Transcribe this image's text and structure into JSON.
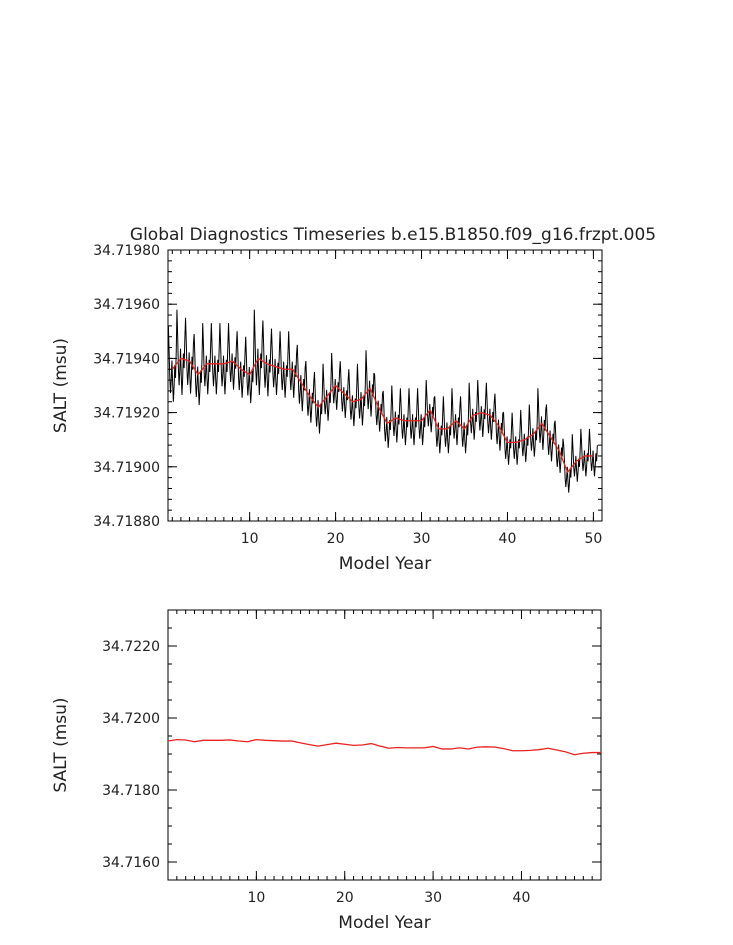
{
  "chart_data": [
    {
      "type": "line",
      "title": "Global Diagnostics Timeseries b.e15.B1850.f09_g16.frzpt.005",
      "xlabel": "Model Year",
      "ylabel": "SALT (msu)",
      "xlim": [
        0.5,
        51
      ],
      "ylim": [
        34.7188,
        34.7198
      ],
      "xticks": [
        10,
        20,
        30,
        40,
        50
      ],
      "yticks": [
        34.7188,
        34.719,
        34.7192,
        34.7194,
        34.7196,
        34.7198
      ],
      "ytick_labels": [
        "34.71880",
        "34.71900",
        "34.71920",
        "34.71940",
        "34.71960",
        "34.71980"
      ],
      "series": [
        {
          "style": "monthly",
          "color": "#000000",
          "annual_means": [
            34.71936,
            34.7194,
            34.71939,
            34.71934,
            34.71938,
            34.71938,
            34.71938,
            34.71939,
            34.71936,
            34.71934,
            34.7194,
            34.71938,
            34.71937,
            34.71936,
            34.71936,
            34.71931,
            34.71926,
            34.71922,
            34.71926,
            34.7193,
            34.71927,
            34.71924,
            34.71925,
            34.71929,
            34.71922,
            34.71916,
            34.71918,
            34.71917,
            34.71917,
            34.71917,
            34.71921,
            34.71914,
            34.71914,
            34.71917,
            34.71914,
            34.71919,
            34.7192,
            34.71919,
            34.71915,
            34.71909,
            34.71909,
            34.7191,
            34.71912,
            34.71916,
            34.71911,
            34.71906,
            34.71898,
            34.71902,
            34.71904,
            34.71904
          ],
          "amplitudes": [
            16,
            18,
            16,
            15,
            15,
            15,
            15,
            14,
            14,
            14,
            18,
            16,
            14,
            14,
            14,
            14,
            13,
            13,
            12,
            12,
            12,
            12,
            13,
            14,
            12,
            12,
            12,
            12,
            12,
            12,
            11,
            12,
            12,
            12,
            12,
            12,
            12,
            12,
            12,
            11,
            11,
            11,
            11,
            13,
            12,
            11,
            10,
            10,
            10,
            10
          ]
        },
        {
          "style": "annual",
          "color": "#e8231f",
          "x": [
            1,
            2,
            3,
            4,
            5,
            6,
            7,
            8,
            9,
            10,
            11,
            12,
            13,
            14,
            15,
            16,
            17,
            18,
            19,
            20,
            21,
            22,
            23,
            24,
            25,
            26,
            27,
            28,
            29,
            30,
            31,
            32,
            33,
            34,
            35,
            36,
            37,
            38,
            39,
            40,
            41,
            42,
            43,
            44,
            45,
            46,
            47,
            48,
            49,
            50
          ],
          "values": [
            34.71936,
            34.7194,
            34.71939,
            34.71934,
            34.71938,
            34.71938,
            34.71938,
            34.71939,
            34.71936,
            34.71934,
            34.7194,
            34.71938,
            34.71937,
            34.71936,
            34.71936,
            34.71931,
            34.71926,
            34.71922,
            34.71926,
            34.7193,
            34.71927,
            34.71924,
            34.71925,
            34.71929,
            34.71922,
            34.71916,
            34.71918,
            34.71917,
            34.71917,
            34.71917,
            34.71921,
            34.71914,
            34.71914,
            34.71917,
            34.71914,
            34.71919,
            34.7192,
            34.71919,
            34.71915,
            34.71909,
            34.71909,
            34.7191,
            34.71912,
            34.71916,
            34.71911,
            34.71906,
            34.71898,
            34.71902,
            34.71904,
            34.71904
          ]
        }
      ]
    },
    {
      "type": "line",
      "title": "",
      "xlabel": "Model Year",
      "ylabel": "SALT (msu)",
      "xlim": [
        0,
        49
      ],
      "ylim": [
        34.7155,
        34.723
      ],
      "xticks": [
        10,
        20,
        30,
        40
      ],
      "yticks": [
        34.716,
        34.718,
        34.72,
        34.722
      ],
      "ytick_labels": [
        "34.7160",
        "34.7180",
        "34.7200",
        "34.7220"
      ],
      "series": [
        {
          "style": "annual",
          "color": "#e8231f",
          "x": [
            0,
            1,
            2,
            3,
            4,
            5,
            6,
            7,
            8,
            9,
            10,
            11,
            12,
            13,
            14,
            15,
            16,
            17,
            18,
            19,
            20,
            21,
            22,
            23,
            24,
            25,
            26,
            27,
            28,
            29,
            30,
            31,
            32,
            33,
            34,
            35,
            36,
            37,
            38,
            39,
            40,
            41,
            42,
            43,
            44,
            45,
            46,
            47,
            48,
            49
          ],
          "values": [
            34.71936,
            34.7194,
            34.71939,
            34.71934,
            34.71938,
            34.71938,
            34.71938,
            34.71939,
            34.71936,
            34.71934,
            34.7194,
            34.71938,
            34.71937,
            34.71936,
            34.71936,
            34.71931,
            34.71926,
            34.71922,
            34.71926,
            34.7193,
            34.71927,
            34.71924,
            34.71925,
            34.71929,
            34.71922,
            34.71916,
            34.71918,
            34.71917,
            34.71917,
            34.71917,
            34.71921,
            34.71914,
            34.71914,
            34.71917,
            34.71914,
            34.71919,
            34.7192,
            34.71919,
            34.71915,
            34.71909,
            34.71909,
            34.7191,
            34.71912,
            34.71916,
            34.71911,
            34.71906,
            34.71898,
            34.71902,
            34.71904,
            34.71904
          ]
        }
      ]
    }
  ]
}
